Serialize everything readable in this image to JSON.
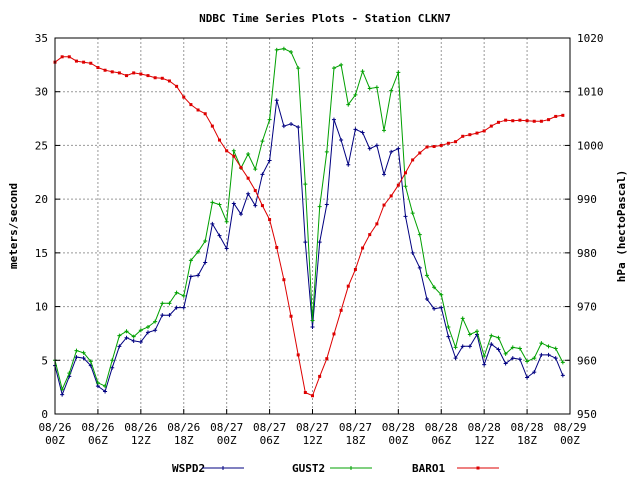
{
  "chart_data": {
    "type": "line",
    "title": "NDBC Time Series Plots - Station CLKN7",
    "ylabel_left": "meters/second",
    "ylabel_right": "hPa (hectoPascal)",
    "ylim_left": [
      0,
      35
    ],
    "ylim_right": [
      950,
      1020
    ],
    "yticks_left": [
      "0",
      "5",
      "10",
      "15",
      "20",
      "25",
      "30",
      "35"
    ],
    "yticks_right": [
      "950",
      "960",
      "970",
      "980",
      "990",
      "1000",
      "1010",
      "1020"
    ],
    "x_range_hours": [
      0,
      72
    ],
    "xticks": [
      {
        "l1": "08/26",
        "l2": "00Z"
      },
      {
        "l1": "08/26",
        "l2": "06Z"
      },
      {
        "l1": "08/26",
        "l2": "12Z"
      },
      {
        "l1": "08/26",
        "l2": "18Z"
      },
      {
        "l1": "08/27",
        "l2": "00Z"
      },
      {
        "l1": "08/27",
        "l2": "06Z"
      },
      {
        "l1": "08/27",
        "l2": "12Z"
      },
      {
        "l1": "08/27",
        "l2": "18Z"
      },
      {
        "l1": "08/28",
        "l2": "00Z"
      },
      {
        "l1": "08/28",
        "l2": "06Z"
      },
      {
        "l1": "08/28",
        "l2": "12Z"
      },
      {
        "l1": "08/28",
        "l2": "18Z"
      },
      {
        "l1": "08/29",
        "l2": "00Z"
      }
    ],
    "grid": true,
    "legend_position": "bottom",
    "series": [
      {
        "name": "WSPD2",
        "color": "#000080",
        "axis": "left",
        "x": [
          0,
          1,
          2,
          3,
          4,
          5,
          6,
          7,
          8,
          9,
          10,
          11,
          12,
          13,
          14,
          15,
          16,
          17,
          18,
          19,
          20,
          21,
          22,
          23,
          24,
          25,
          26,
          27,
          28,
          29,
          30,
          31,
          32,
          33,
          34,
          35,
          36,
          37,
          38,
          39,
          40,
          41,
          42,
          43,
          44,
          45,
          46,
          47,
          48,
          49,
          50,
          51,
          52,
          53,
          54,
          55,
          56,
          57,
          58,
          59,
          60,
          61,
          62,
          63,
          64,
          65,
          66,
          67,
          68,
          69,
          70,
          71
        ],
        "values": [
          4.5,
          1.8,
          3.5,
          5.3,
          5.2,
          4.5,
          2.6,
          2.1,
          4.3,
          6.3,
          7.1,
          6.8,
          6.7,
          7.6,
          7.8,
          9.2,
          9.2,
          9.9,
          9.9,
          12.8,
          12.9,
          14.1,
          17.7,
          16.6,
          15.4,
          19.6,
          18.6,
          20.5,
          19.4,
          22.3,
          23.6,
          29.2,
          26.8,
          27.0,
          26.7,
          16.0,
          8.1,
          16.0,
          19.5,
          27.4,
          25.5,
          23.2,
          26.5,
          26.2,
          24.7,
          25.0,
          22.3,
          24.4,
          24.7,
          18.4,
          15.0,
          13.6,
          10.7,
          9.8,
          9.9,
          7.2,
          5.2,
          6.3,
          6.3,
          7.4,
          4.6,
          6.5,
          6.0,
          4.7,
          5.2,
          5.1,
          3.4,
          3.9,
          5.5,
          5.5,
          5.2,
          3.6
        ]
      },
      {
        "name": "GUST2",
        "color": "#00a000",
        "axis": "left",
        "x": [
          0,
          1,
          2,
          3,
          4,
          5,
          6,
          7,
          8,
          9,
          10,
          11,
          12,
          13,
          14,
          15,
          16,
          17,
          18,
          19,
          20,
          21,
          22,
          23,
          24,
          25,
          26,
          27,
          28,
          29,
          30,
          31,
          32,
          33,
          34,
          35,
          36,
          37,
          38,
          39,
          40,
          41,
          42,
          43,
          44,
          45,
          46,
          47,
          48,
          49,
          50,
          51,
          52,
          53,
          54,
          55,
          56,
          57,
          58,
          59,
          60,
          61,
          62,
          63,
          64,
          65,
          66,
          67,
          68,
          69,
          70,
          71
        ],
        "values": [
          5.0,
          2.3,
          3.8,
          5.9,
          5.7,
          4.9,
          2.9,
          2.6,
          5.0,
          7.3,
          7.7,
          7.2,
          7.8,
          8.1,
          8.6,
          10.3,
          10.3,
          11.3,
          11.0,
          14.3,
          15.1,
          16.1,
          19.7,
          19.5,
          17.9,
          24.5,
          22.9,
          24.2,
          22.8,
          25.4,
          27.4,
          33.9,
          34.0,
          33.7,
          32.2,
          21.4,
          8.7,
          19.3,
          24.4,
          32.2,
          32.5,
          28.8,
          29.7,
          31.9,
          30.3,
          30.4,
          26.4,
          30.1,
          31.8,
          21.2,
          18.7,
          16.7,
          12.9,
          11.8,
          11.1,
          8.1,
          6.2,
          8.9,
          7.4,
          7.7,
          5.4,
          7.3,
          7.1,
          5.6,
          6.2,
          6.1,
          4.9,
          5.2,
          6.6,
          6.3,
          6.1,
          4.8
        ]
      },
      {
        "name": "BARO1",
        "color": "#dd0000",
        "axis": "right",
        "x": [
          0,
          1,
          2,
          3,
          4,
          5,
          6,
          7,
          8,
          9,
          10,
          11,
          12,
          13,
          14,
          15,
          16,
          17,
          18,
          19,
          20,
          21,
          22,
          23,
          24,
          25,
          26,
          27,
          28,
          29,
          30,
          31,
          32,
          33,
          34,
          35,
          36,
          37,
          38,
          39,
          40,
          41,
          42,
          43,
          44,
          45,
          46,
          47,
          48,
          49,
          50,
          51,
          52,
          53,
          54,
          55,
          56,
          57,
          58,
          59,
          60,
          61,
          62,
          63,
          64,
          65,
          66,
          67,
          68,
          69,
          70,
          71
        ],
        "values": [
          1015.5,
          1016.5,
          1016.5,
          1015.7,
          1015.5,
          1015.3,
          1014.5,
          1014.0,
          1013.7,
          1013.5,
          1013.0,
          1013.5,
          1013.3,
          1013.0,
          1012.6,
          1012.5,
          1012.0,
          1011.0,
          1009.0,
          1007.6,
          1006.6,
          1005.9,
          1003.6,
          1001.0,
          999.0,
          998.0,
          995.9,
          993.9,
          991.6,
          988.8,
          986.2,
          981.0,
          975.0,
          968.2,
          961.0,
          954.0,
          953.4,
          957.0,
          960.3,
          964.9,
          969.3,
          973.8,
          976.9,
          980.9,
          983.4,
          985.4,
          988.9,
          990.6,
          992.6,
          994.9,
          997.3,
          998.6,
          999.7,
          999.8,
          1000.0,
          1000.4,
          1000.7,
          1001.7,
          1002.0,
          1002.3,
          1002.7,
          1003.6,
          1004.3,
          1004.7,
          1004.6,
          1004.7,
          1004.6,
          1004.5,
          1004.5,
          1004.8,
          1005.4,
          1005.6
        ]
      }
    ]
  }
}
